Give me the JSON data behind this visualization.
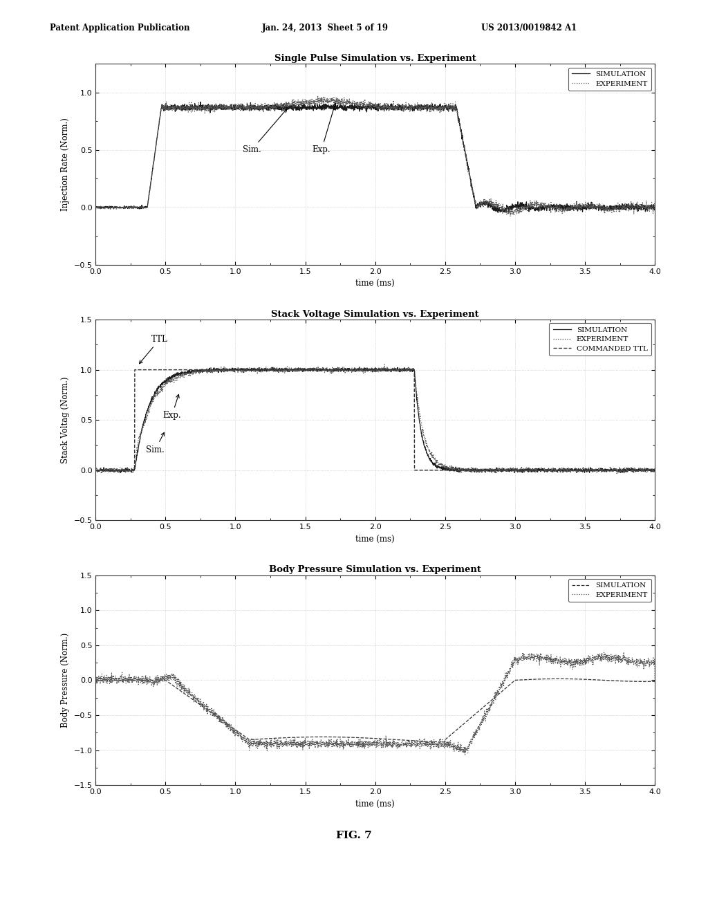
{
  "header_left": "Patent Application Publication",
  "header_center": "Jan. 24, 2013  Sheet 5 of 19",
  "header_right": "US 2013/0019842 A1",
  "fig_label": "FIG. 7",
  "plot1": {
    "title": "Single Pulse Simulation vs. Experiment",
    "ylabel": "Injection Rate (Norm.)",
    "xlabel": "time (ms)",
    "ylim": [
      -0.5,
      1.25
    ],
    "xlim": [
      0,
      4
    ],
    "yticks": [
      -0.5,
      0.0,
      0.5,
      1.0
    ],
    "xticks": [
      0,
      0.5,
      1,
      1.5,
      2,
      2.5,
      3,
      3.5,
      4
    ],
    "legend": [
      "SIMULATION",
      "EXPERIMENT"
    ]
  },
  "plot2": {
    "title": "Stack Voltage Simulation vs. Experiment",
    "ylabel": "Stack Voltag (Norm.)",
    "xlabel": "time (ms)",
    "ylim": [
      -0.5,
      1.5
    ],
    "xlim": [
      0,
      4
    ],
    "yticks": [
      -0.5,
      0.0,
      0.5,
      1.0,
      1.5
    ],
    "xticks": [
      0,
      0.5,
      1,
      1.5,
      2,
      2.5,
      3,
      3.5,
      4
    ],
    "legend": [
      "SIMULATION",
      "EXPERIMENT",
      "COMMANDED TTL"
    ]
  },
  "plot3": {
    "title": "Body Pressure Simulation vs. Experiment",
    "ylabel": "Body Pressure (Norm.)",
    "xlabel": "time (ms)",
    "ylim": [
      -1.5,
      1.5
    ],
    "xlim": [
      0,
      4
    ],
    "yticks": [
      -1.5,
      -1.0,
      -0.5,
      0.0,
      0.5,
      1.0,
      1.5
    ],
    "xticks": [
      0,
      0.5,
      1,
      1.5,
      2,
      2.5,
      3,
      3.5,
      4
    ],
    "legend": [
      "SIMULATION",
      "EXPERIMENT"
    ]
  },
  "bg_color": "#ffffff"
}
